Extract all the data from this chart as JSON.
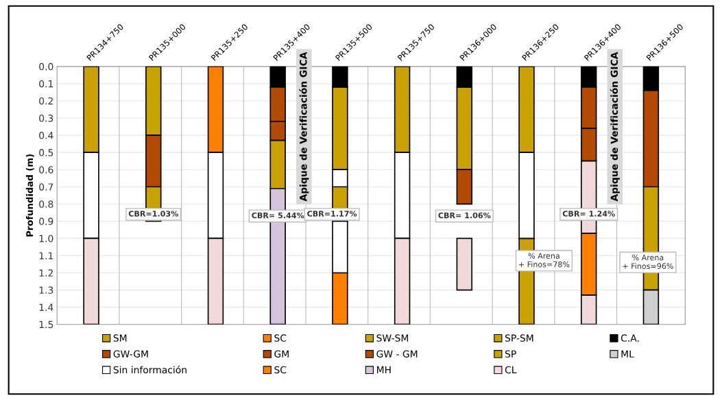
{
  "chart_data": {
    "type": "bar",
    "ylabel": "Profundidad (m)",
    "categories": [
      "PR134+750",
      "PR135+000",
      "PR135+250",
      "PR135+400",
      "PR135+500",
      "PR135+750",
      "PR136+000",
      "PR136+250",
      "PR136+400",
      "PR136+500"
    ],
    "ylim": [
      1.5,
      0.0
    ],
    "yticks": [
      {
        "value": 0.0,
        "label": "0.0"
      },
      0.1,
      0.2,
      0.3,
      0.4,
      0.5,
      0.6,
      0.7,
      0.8,
      0.9,
      {
        "value": 1.0,
        "label": "1.0"
      },
      1.1,
      1.2,
      1.3,
      1.4,
      1.5
    ],
    "grid": true,
    "legend": "bottom",
    "series": [
      {
        "name": "SM",
        "color": "#c9a200",
        "values": [
          0.5,
          0.4,
          null,
          null,
          0.2,
          0.5,
          null,
          0.5,
          null,
          null
        ],
        "base": [
          0.0,
          0.0,
          null,
          null,
          0.7,
          0.0,
          null,
          0.0,
          null,
          null
        ]
      },
      {
        "name": "SC",
        "color": "#ff8000",
        "values": [
          null,
          null,
          0.5,
          null,
          null,
          null,
          null,
          null,
          null,
          null
        ],
        "base": [
          null,
          null,
          0.0,
          null,
          null,
          null,
          null,
          null,
          null,
          null
        ]
      },
      {
        "name": "SW-SM",
        "color": "#c9a200",
        "values": [
          null,
          0.2,
          null,
          null,
          null,
          null,
          0.48,
          0.5,
          null,
          0.6
        ],
        "base": [
          null,
          0.7,
          null,
          null,
          null,
          null,
          0.12,
          1.0,
          null,
          0.7
        ]
      },
      {
        "name": "SP-SM",
        "color": "#c9a200",
        "values": [
          null,
          null,
          null,
          null,
          0.48,
          null,
          null,
          null,
          null,
          null
        ],
        "base": [
          null,
          null,
          null,
          null,
          0.12,
          null,
          null,
          null,
          null,
          null
        ]
      },
      {
        "name": "C.A.",
        "color": "#000000",
        "values": [
          null,
          null,
          null,
          0.12,
          0.12,
          null,
          0.12,
          null,
          0.12,
          0.14
        ],
        "base": [
          null,
          null,
          null,
          0.0,
          0.0,
          null,
          0.0,
          null,
          0.0,
          0.0
        ]
      },
      {
        "name": "GW-GM",
        "color": "#b24a00",
        "values": [
          null,
          0.3,
          null,
          0.2,
          null,
          null,
          null,
          null,
          0.24,
          0.56
        ],
        "base": [
          null,
          0.4,
          null,
          0.12,
          null,
          null,
          null,
          null,
          0.12,
          0.14
        ]
      },
      {
        "name": "GM",
        "color": "#b24a00",
        "values": [
          null,
          null,
          null,
          0.11,
          null,
          null,
          null,
          null,
          0.19,
          null
        ],
        "base": [
          null,
          null,
          null,
          0.32,
          null,
          null,
          null,
          null,
          0.36,
          null
        ]
      },
      {
        "name": "GW - GM",
        "color": "#b24a00",
        "values": [
          null,
          null,
          null,
          null,
          null,
          null,
          0.2,
          null,
          null,
          null
        ],
        "base": [
          null,
          null,
          null,
          null,
          null,
          null,
          0.6,
          null,
          null,
          null
        ]
      },
      {
        "name": "SP",
        "color": "#c9a200",
        "values": [
          null,
          null,
          null,
          0.28,
          null,
          null,
          null,
          null,
          null,
          null
        ],
        "base": [
          null,
          null,
          null,
          0.43,
          null,
          null,
          null,
          null,
          null,
          null
        ]
      },
      {
        "name": "ML",
        "color": "#cfcfcf",
        "values": [
          null,
          null,
          null,
          null,
          null,
          null,
          null,
          null,
          null,
          0.2
        ],
        "base": [
          null,
          null,
          null,
          null,
          null,
          null,
          null,
          null,
          null,
          1.3
        ]
      },
      {
        "name": "Sin información",
        "color": "#ffffff",
        "values": [
          0.5,
          null,
          0.5,
          null,
          0.1,
          0.5,
          null,
          0.5,
          null,
          null
        ],
        "base": [
          0.5,
          null,
          0.5,
          null,
          0.6,
          0.5,
          null,
          0.5,
          null,
          null
        ]
      },
      {
        "name": "SC",
        "color": "#ff8000",
        "values": [
          null,
          null,
          null,
          null,
          0.3,
          null,
          null,
          null,
          0.36,
          null
        ],
        "base": [
          null,
          null,
          null,
          null,
          1.2,
          null,
          null,
          null,
          0.97,
          null
        ]
      },
      {
        "name": "MH",
        "color": "#d6c3dc",
        "values": [
          null,
          null,
          null,
          0.79,
          null,
          null,
          null,
          null,
          null,
          null
        ],
        "base": [
          null,
          null,
          null,
          0.71,
          null,
          null,
          null,
          null,
          null,
          null
        ]
      },
      {
        "name": "CL",
        "color": "#f2d9d9",
        "values": [
          0.5,
          null,
          0.5,
          null,
          null,
          0.5,
          0.3,
          null,
          0.42,
          null
        ],
        "base": [
          1.0,
          null,
          1.0,
          null,
          null,
          1.0,
          1.0,
          null,
          0.55,
          null
        ]
      },
      {
        "color": "#ffffff",
        "values": [
          null,
          null,
          null,
          null,
          0.3,
          null,
          null,
          null,
          null,
          null
        ],
        "base": [
          null,
          null,
          null,
          null,
          0.9,
          null,
          null,
          null,
          null,
          null
        ]
      },
      {
        "color": "#f2d9d9",
        "values": [
          null,
          null,
          null,
          null,
          null,
          null,
          null,
          null,
          0.17,
          null
        ],
        "base": [
          null,
          null,
          null,
          null,
          null,
          null,
          null,
          null,
          1.33,
          null
        ]
      }
    ],
    "annotations": [
      "CBR=1.03%",
      "CBR= 5.44%",
      "CBR=1.17%",
      "CBR= 1.06%",
      "CBR= 1.24%",
      "% Arena\n+ Finos=78%",
      "% Arena\n+ Finos=96%",
      "Apique de Verificación GICA",
      "Apique de Verificación GICA"
    ]
  }
}
